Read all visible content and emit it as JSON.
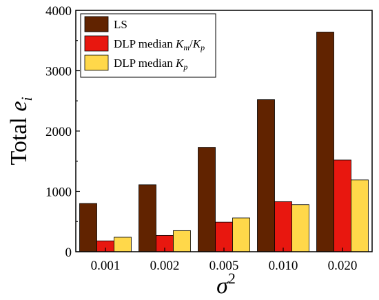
{
  "chart_data": {
    "type": "bar",
    "xlabel": "σ",
    "xlabel_sup": "2",
    "ylabel": "Total",
    "ylabel_var": "e",
    "ylabel_sub": "i",
    "ylim": [
      0,
      4000
    ],
    "yticks": [
      0,
      1000,
      2000,
      3000,
      4000
    ],
    "grid": false,
    "legend_position": "top-left",
    "categories": [
      "0.001",
      "0.002",
      "0.005",
      "0.010",
      "0.020"
    ],
    "series": [
      {
        "name": "LS",
        "legend_parts": [
          "LS"
        ],
        "color": "#612300",
        "values": [
          800,
          1110,
          1730,
          2520,
          3640
        ]
      },
      {
        "name": "DLP median Km/Kp",
        "legend_parts": [
          "DLP median ",
          "K",
          "m",
          "/",
          "K",
          "p"
        ],
        "color": "#e8170f",
        "values": [
          180,
          270,
          490,
          830,
          1520
        ]
      },
      {
        "name": "DLP median Kp",
        "legend_parts": [
          "DLP median ",
          "K",
          "p"
        ],
        "color": "#ffd84a",
        "values": [
          240,
          350,
          560,
          780,
          1190
        ]
      }
    ]
  }
}
